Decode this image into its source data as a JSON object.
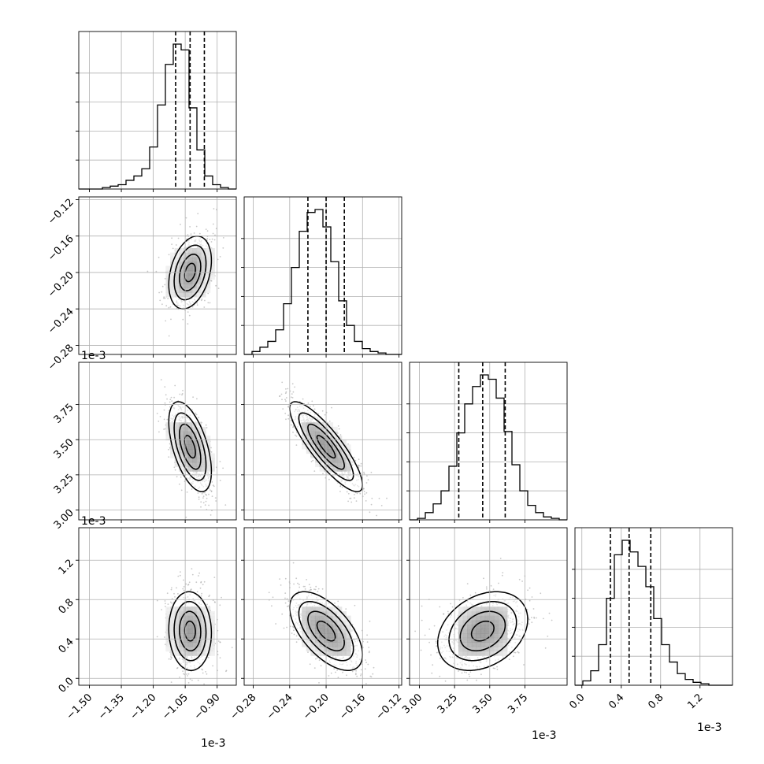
{
  "chart_data": {
    "type": "corner",
    "grid": true,
    "offset_label": "1e-3",
    "parameters": [
      {
        "range": [
          -1.55,
          -0.81
        ],
        "ticks": [
          -1.5,
          -1.35,
          -1.2,
          -1.05,
          -0.9
        ],
        "tick_labels": [
          "−1.50",
          "−1.35",
          "−1.20",
          "−1.05",
          "−0.90"
        ],
        "quantiles": [
          -1.095,
          -1.027,
          -0.96
        ],
        "hist": [
          0,
          0,
          0,
          0.01,
          0.02,
          0.03,
          0.06,
          0.09,
          0.14,
          0.29,
          0.58,
          0.86,
          1.0,
          0.96,
          0.56,
          0.27,
          0.09,
          0.03,
          0.01,
          0
        ]
      },
      {
        "range": [
          -0.29,
          -0.117
        ],
        "ticks": [
          -0.28,
          -0.24,
          -0.2,
          -0.16,
          -0.12
        ],
        "tick_labels": [
          "−0.28",
          "−0.24",
          "−0.20",
          "−0.16",
          "−0.12"
        ],
        "quantiles": [
          -0.22,
          -0.2,
          -0.18
        ],
        "hist": [
          0,
          0.02,
          0.05,
          0.09,
          0.17,
          0.35,
          0.6,
          0.85,
          0.98,
          1.0,
          0.88,
          0.64,
          0.37,
          0.2,
          0.09,
          0.04,
          0.02,
          0.01,
          0,
          0
        ]
      },
      {
        "range": [
          2.93,
          4.05
        ],
        "ticks": [
          3.0,
          3.25,
          3.5,
          3.75
        ],
        "tick_labels": [
          "3.00",
          "3.25",
          "3.50",
          "3.75"
        ],
        "quantiles": [
          3.28,
          3.45,
          3.61
        ],
        "hist": [
          0,
          0.01,
          0.05,
          0.11,
          0.2,
          0.37,
          0.6,
          0.8,
          0.92,
          1.0,
          0.97,
          0.84,
          0.61,
          0.38,
          0.2,
          0.1,
          0.05,
          0.02,
          0.01,
          0
        ]
      },
      {
        "range": [
          -0.07,
          1.53
        ],
        "ticks": [
          0.0,
          0.4,
          0.8,
          1.2
        ],
        "tick_labels": [
          "0.0",
          "0.4",
          "0.8",
          "1.2"
        ],
        "quantiles": [
          0.29,
          0.48,
          0.7
        ],
        "hist": [
          0,
          0.03,
          0.1,
          0.28,
          0.6,
          0.9,
          1.0,
          0.92,
          0.82,
          0.68,
          0.46,
          0.28,
          0.16,
          0.08,
          0.04,
          0.02,
          0.01,
          0,
          0,
          0
        ]
      }
    ],
    "pairs": [
      {
        "x": 0,
        "y": 1,
        "center": [
          -1.027,
          -0.2
        ],
        "sd": [
          0.05,
          0.02
        ],
        "rho": 0.33
      },
      {
        "x": 0,
        "y": 2,
        "center": [
          -1.027,
          3.45
        ],
        "sd": [
          0.05,
          0.16
        ],
        "rho": -0.55
      },
      {
        "x": 1,
        "y": 2,
        "center": [
          -0.2,
          3.45
        ],
        "sd": [
          0.02,
          0.16
        ],
        "rho": -0.85
      },
      {
        "x": 0,
        "y": 3,
        "center": [
          -1.027,
          0.48
        ],
        "sd": [
          0.05,
          0.2
        ],
        "rho": -0.05
      },
      {
        "x": 1,
        "y": 3,
        "center": [
          -0.2,
          0.48
        ],
        "sd": [
          0.02,
          0.2
        ],
        "rho": -0.6
      },
      {
        "x": 2,
        "y": 3,
        "center": [
          3.45,
          0.48
        ],
        "sd": [
          0.16,
          0.2
        ],
        "rho": 0.3
      }
    ],
    "contour_levels": [
      0.5,
      1.0,
      1.5,
      2.0
    ]
  }
}
